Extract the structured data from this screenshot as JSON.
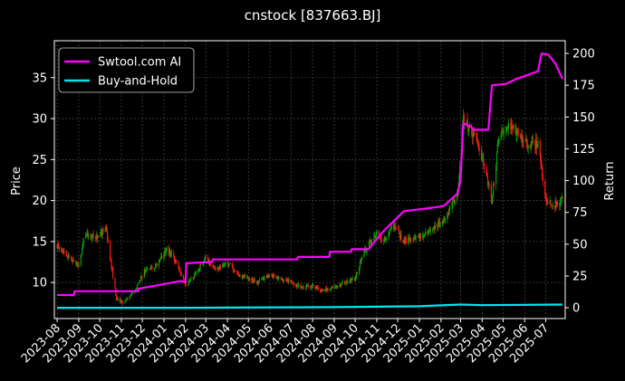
{
  "chart_data": {
    "type": "line",
    "title": "cnstock [837663.BJ]",
    "ylabel_left": "Price",
    "ylabel_right": "Return",
    "ylim_left": [
      5.6,
      39.5
    ],
    "ylim_right": [
      -8.5,
      210
    ],
    "y_ticks_left": [
      10,
      15,
      20,
      25,
      30,
      35
    ],
    "y_ticks_right": [
      0,
      25,
      50,
      75,
      100,
      125,
      150,
      175,
      200
    ],
    "x_ticks": [
      "2023-08",
      "2023-09",
      "2023-10",
      "2023-11",
      "2023-12",
      "2024-01",
      "2024-02",
      "2024-03",
      "2024-04",
      "2024-05",
      "2024-06",
      "2024-07",
      "2024-08",
      "2024-09",
      "2024-10",
      "2024-11",
      "2024-12",
      "2025-01",
      "2025-02",
      "2025-03",
      "2025-04",
      "2025-05",
      "2025-06",
      "2025-07"
    ],
    "grid": true,
    "legend_position": "top-left",
    "colors": {
      "background": "#000000",
      "up_candle": "#00aa00",
      "down_candle": "#ff1a1a",
      "strategy": "#ff00ff",
      "benchmark": "#00e5ee",
      "grid": "#555555"
    },
    "price": {
      "name": "Price",
      "x": [
        "2023-08-01",
        "2023-08-20",
        "2023-09-01",
        "2023-09-10",
        "2023-09-25",
        "2023-10-10",
        "2023-10-25",
        "2023-11-05",
        "2023-11-20",
        "2023-12-05",
        "2023-12-20",
        "2024-01-05",
        "2024-01-20",
        "2024-02-01",
        "2024-02-15",
        "2024-03-01",
        "2024-03-15",
        "2024-04-01",
        "2024-04-15",
        "2024-05-01",
        "2024-05-15",
        "2024-06-01",
        "2024-06-15",
        "2024-07-01",
        "2024-07-15",
        "2024-08-01",
        "2024-08-15",
        "2024-09-01",
        "2024-09-15",
        "2024-10-01",
        "2024-10-15",
        "2024-11-01",
        "2024-11-10",
        "2024-11-25",
        "2024-12-10",
        "2024-12-25",
        "2025-01-10",
        "2025-01-25",
        "2025-02-10",
        "2025-02-25",
        "2025-03-05",
        "2025-03-15",
        "2025-03-25",
        "2025-04-05",
        "2025-04-15",
        "2025-04-25",
        "2025-05-10",
        "2025-05-25",
        "2025-06-10",
        "2025-06-20",
        "2025-07-01",
        "2025-07-10",
        "2025-07-20",
        "2025-07-25"
      ],
      "values": [
        14.5,
        13.0,
        12.0,
        16.0,
        15.5,
        16.5,
        8.0,
        7.5,
        9.0,
        11.5,
        12.0,
        14.0,
        12.5,
        9.5,
        11.0,
        13.0,
        11.5,
        12.5,
        11.0,
        10.5,
        10.0,
        11.0,
        10.5,
        10.0,
        9.5,
        9.5,
        9.0,
        9.5,
        10.0,
        10.5,
        14.0,
        16.0,
        15.0,
        17.0,
        15.0,
        15.5,
        16.0,
        17.0,
        18.0,
        21.0,
        30.0,
        28.5,
        27.0,
        24.0,
        20.0,
        28.0,
        29.5,
        27.5,
        26.5,
        27.0,
        20.0,
        19.5,
        19.5,
        20.5
      ]
    },
    "series": [
      {
        "name": "Swtool.com AI",
        "axis": "right",
        "x": [
          "2023-08-01",
          "2023-08-25",
          "2023-08-26",
          "2023-11-25",
          "2023-11-26",
          "2024-01-25",
          "2024-02-01",
          "2024-02-02",
          "2024-03-10",
          "2024-03-11",
          "2024-07-10",
          "2024-07-11",
          "2024-08-25",
          "2024-08-26",
          "2024-09-25",
          "2024-09-26",
          "2024-10-20",
          "2024-11-10",
          "2024-12-10",
          "2025-01-10",
          "2025-02-05",
          "2025-02-25",
          "2025-03-01",
          "2025-03-05",
          "2025-03-15",
          "2025-03-20",
          "2025-04-10",
          "2025-04-15",
          "2025-05-05",
          "2025-05-20",
          "2025-06-05",
          "2025-06-15",
          "2025-06-20",
          "2025-06-25",
          "2025-07-05",
          "2025-07-15",
          "2025-07-25"
        ],
        "values": [
          10,
          10,
          13,
          13,
          15,
          21,
          20,
          35,
          36,
          38,
          38,
          40,
          40,
          44,
          44,
          46,
          46,
          60,
          76,
          78,
          80,
          90,
          100,
          145,
          143,
          140,
          140,
          175,
          176,
          180,
          183,
          185,
          186,
          200,
          199,
          192,
          180
        ]
      },
      {
        "name": "Buy-and-Hold",
        "axis": "right",
        "x": [
          "2023-08-01",
          "2024-02-01",
          "2024-09-01",
          "2025-01-01",
          "2025-03-01",
          "2025-04-01",
          "2025-07-25"
        ],
        "values": [
          0,
          0,
          0.5,
          1.2,
          2.5,
          2.0,
          2.5
        ]
      }
    ]
  }
}
